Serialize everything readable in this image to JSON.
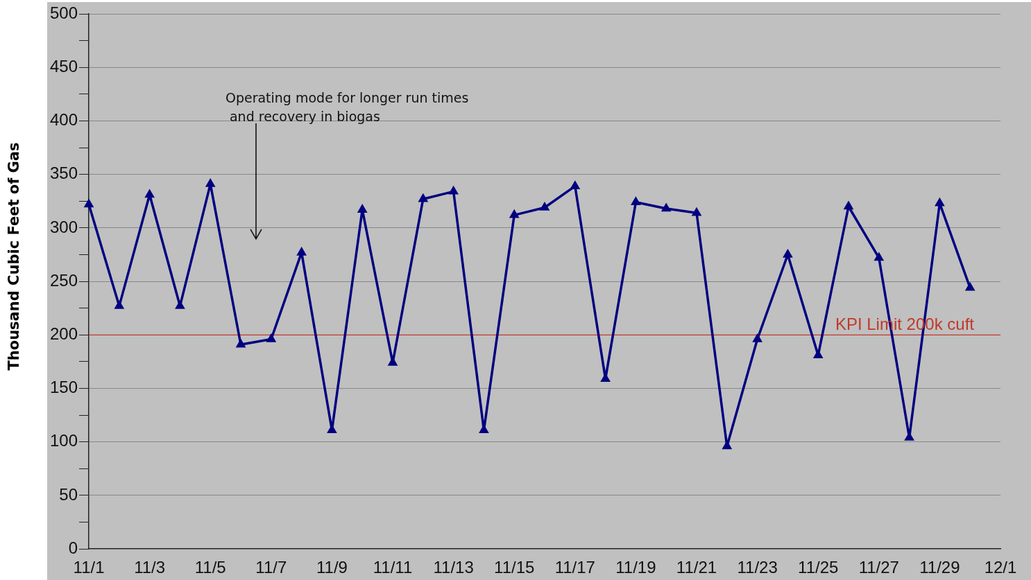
{
  "chart_data": {
    "type": "line",
    "ylabel": "Thousand Cubic Feet of Gas",
    "categories": [
      "11/1",
      null,
      "11/3",
      null,
      "11/5",
      null,
      "11/7",
      null,
      "11/9",
      null,
      "11/11",
      null,
      "11/13",
      null,
      "11/15",
      null,
      "11/17",
      null,
      "11/19",
      null,
      "11/21",
      null,
      "11/23",
      null,
      "11/25",
      null,
      "11/27",
      null,
      "11/29",
      null,
      "12/1"
    ],
    "series": [
      {
        "color": "#000080",
        "values": [
          322,
          227,
          331,
          227,
          341,
          191,
          196,
          277,
          111,
          317,
          174,
          327,
          334,
          111,
          312,
          319,
          339,
          159,
          324,
          318,
          314,
          96,
          196,
          275,
          181,
          320,
          272,
          104,
          323,
          244,
          null
        ]
      }
    ],
    "ylim": [
      0,
      500
    ],
    "yticks": [
      0,
      {
        "value": 25,
        "label": null
      },
      50,
      {
        "value": 75,
        "label": null
      },
      100,
      {
        "value": 125,
        "label": null
      },
      150,
      {
        "value": 175,
        "label": null
      },
      200,
      {
        "value": 225,
        "label": null
      },
      250,
      {
        "value": 275,
        "label": null
      },
      300,
      {
        "value": 325,
        "label": null
      },
      350,
      {
        "value": 375,
        "label": null
      },
      400,
      {
        "value": 425,
        "label": null
      },
      450,
      {
        "value": 475,
        "label": null
      },
      500
    ],
    "grid": "y",
    "legend": false,
    "marker": "triangle",
    "line_style": "solid",
    "ref_lines": [
      {
        "axis": "y",
        "value": 200,
        "label": "KPI Limit 200k cuft",
        "color": "#c0392b"
      }
    ],
    "annotations": [
      "Operating mode for longer run times\n and recovery in biogas"
    ]
  }
}
